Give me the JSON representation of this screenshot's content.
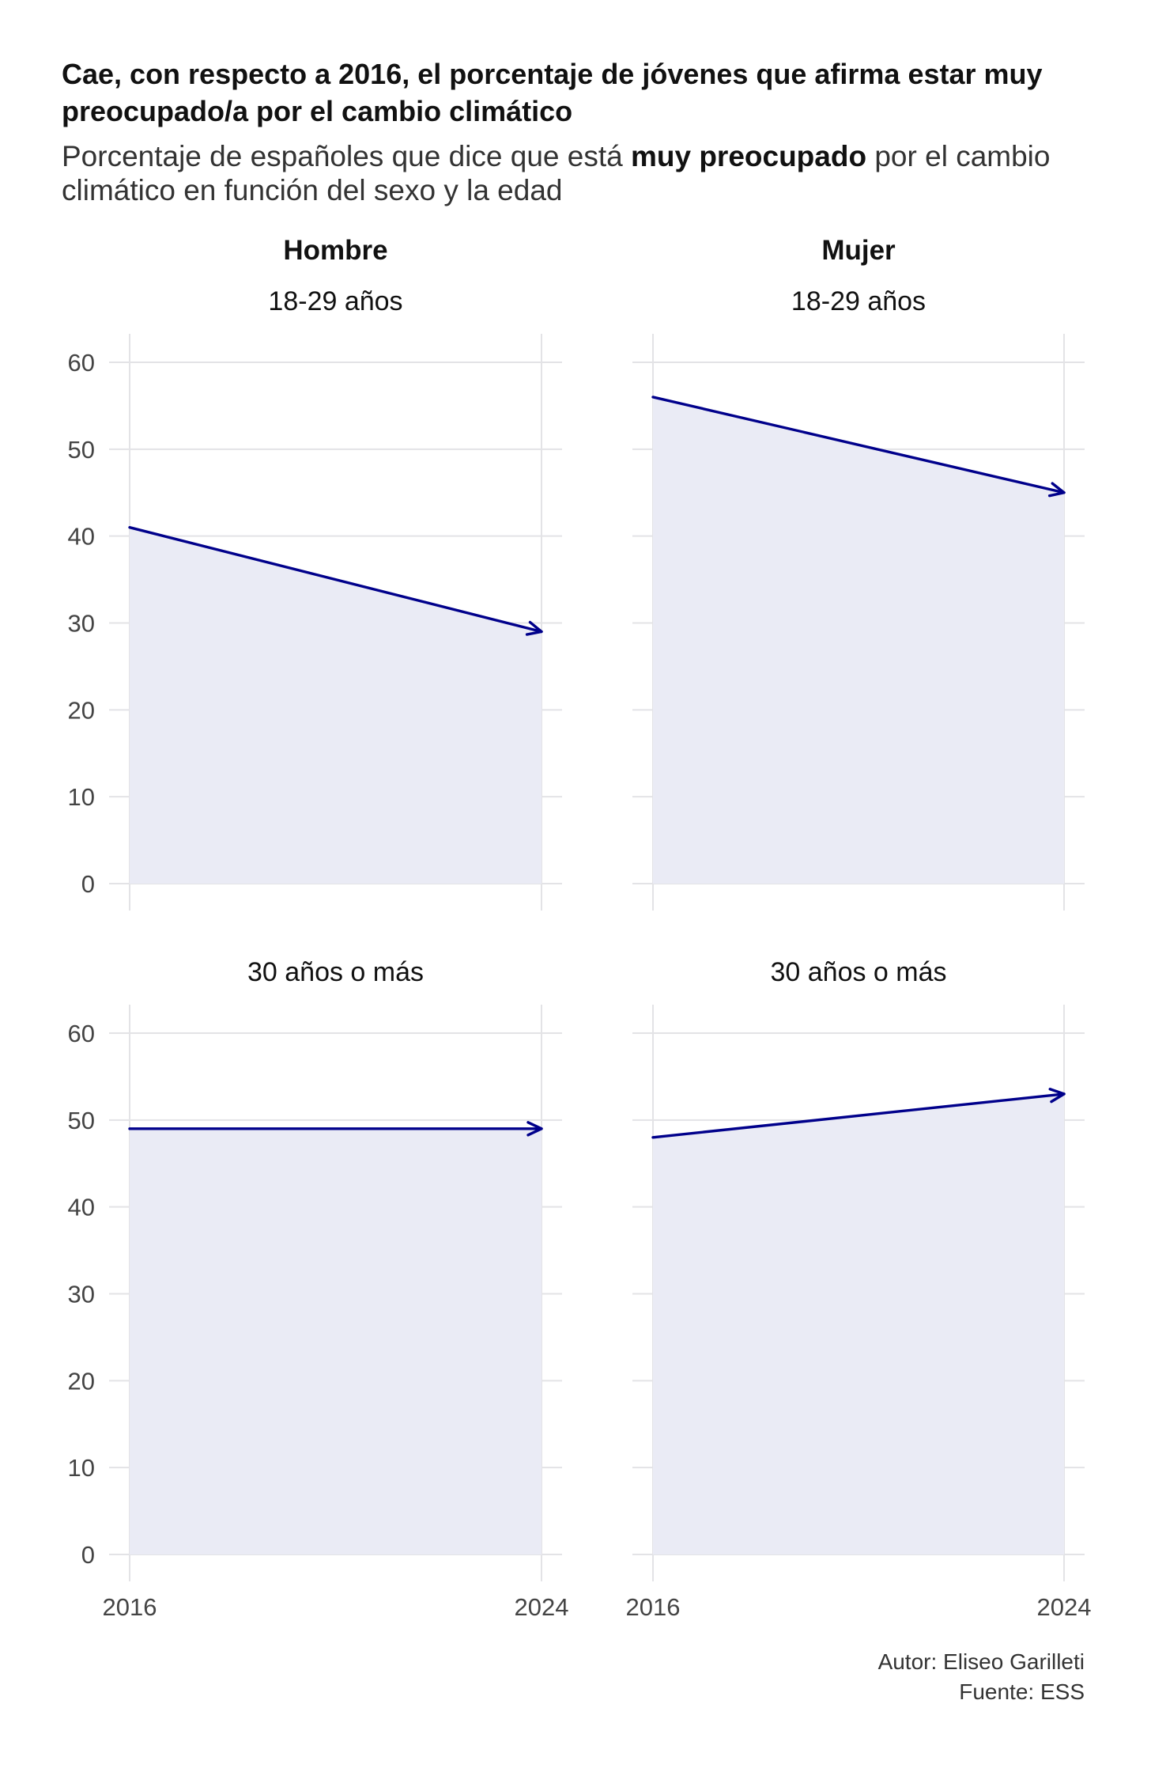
{
  "title": "Cae, con respecto a 2016, el porcentaje de jóvenes que afirma estar muy preocupado/a por el cambio climático",
  "subtitle": {
    "before": "Porcentaje de españoles que dice que está ",
    "bold": "muy preocupado",
    "after": " por el cambio climático en función del sexo y la edad"
  },
  "credits": {
    "author": "Autor: Eliseo Garilleti",
    "source": "Fuente: ESS"
  },
  "colors": {
    "line": "#00008B",
    "area": "#EAEBF5",
    "grid": "#E3E3E6"
  },
  "chart_data": {
    "type": "line",
    "x_ticks": [
      2016,
      2024
    ],
    "ylim": [
      0,
      60
    ],
    "y_ticks": [
      0,
      10,
      20,
      30,
      40,
      50,
      60
    ],
    "column_labels": [
      "Hombre",
      "Mujer"
    ],
    "grid": true,
    "panels": [
      {
        "sex": "Hombre",
        "age": "18-29 años",
        "x": [
          2016,
          2024
        ],
        "y": [
          41,
          29
        ]
      },
      {
        "sex": "Mujer",
        "age": "18-29 años",
        "x": [
          2016,
          2024
        ],
        "y": [
          56,
          45
        ]
      },
      {
        "sex": "Hombre",
        "age": "30 años o más",
        "x": [
          2016,
          2024
        ],
        "y": [
          49,
          49
        ]
      },
      {
        "sex": "Mujer",
        "age": "30 años o más",
        "x": [
          2016,
          2024
        ],
        "y": [
          48,
          53
        ]
      }
    ]
  }
}
